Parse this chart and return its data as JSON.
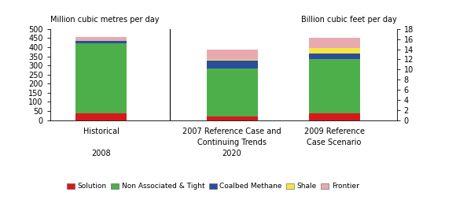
{
  "series": {
    "Solution": [
      35,
      20,
      35
    ],
    "Non Associated & Tight": [
      385,
      265,
      300
    ],
    "Coalbed Methane": [
      15,
      42,
      30
    ],
    "Shale": [
      0,
      5,
      30
    ],
    "Frontier": [
      22,
      55,
      55
    ]
  },
  "colors": {
    "Solution": "#d7191c",
    "Non Associated & Tight": "#4daf4a",
    "Coalbed Methane": "#2c4d9e",
    "Shale": "#f5e642",
    "Frontier": "#e8aab0"
  },
  "ylabel_left": "Million cubic metres per day",
  "ylabel_right": "Billion cubic feet per day",
  "ylim_left": [
    0,
    500
  ],
  "ylim_right": [
    0,
    18
  ],
  "yticks_left": [
    0,
    50,
    100,
    150,
    200,
    250,
    300,
    350,
    400,
    450,
    500
  ],
  "yticks_right": [
    0,
    2,
    4,
    6,
    8,
    10,
    12,
    14,
    16,
    18
  ],
  "bar_width": 0.45,
  "bar_positions": [
    0.5,
    1.65,
    2.55
  ],
  "divider_x": 1.1,
  "background_color": "#ffffff",
  "xlim": [
    0.05,
    3.1
  ],
  "cat_labels": [
    "Historical\n\n2008",
    "2007 Reference Case and\nContinuing Trends\n2020",
    "2009 Reference\nCase Scenario\n "
  ],
  "legend_labels": [
    "Solution",
    "Non Associated & Tight",
    "Coalbed Methane",
    "Shale",
    "Frontier"
  ]
}
